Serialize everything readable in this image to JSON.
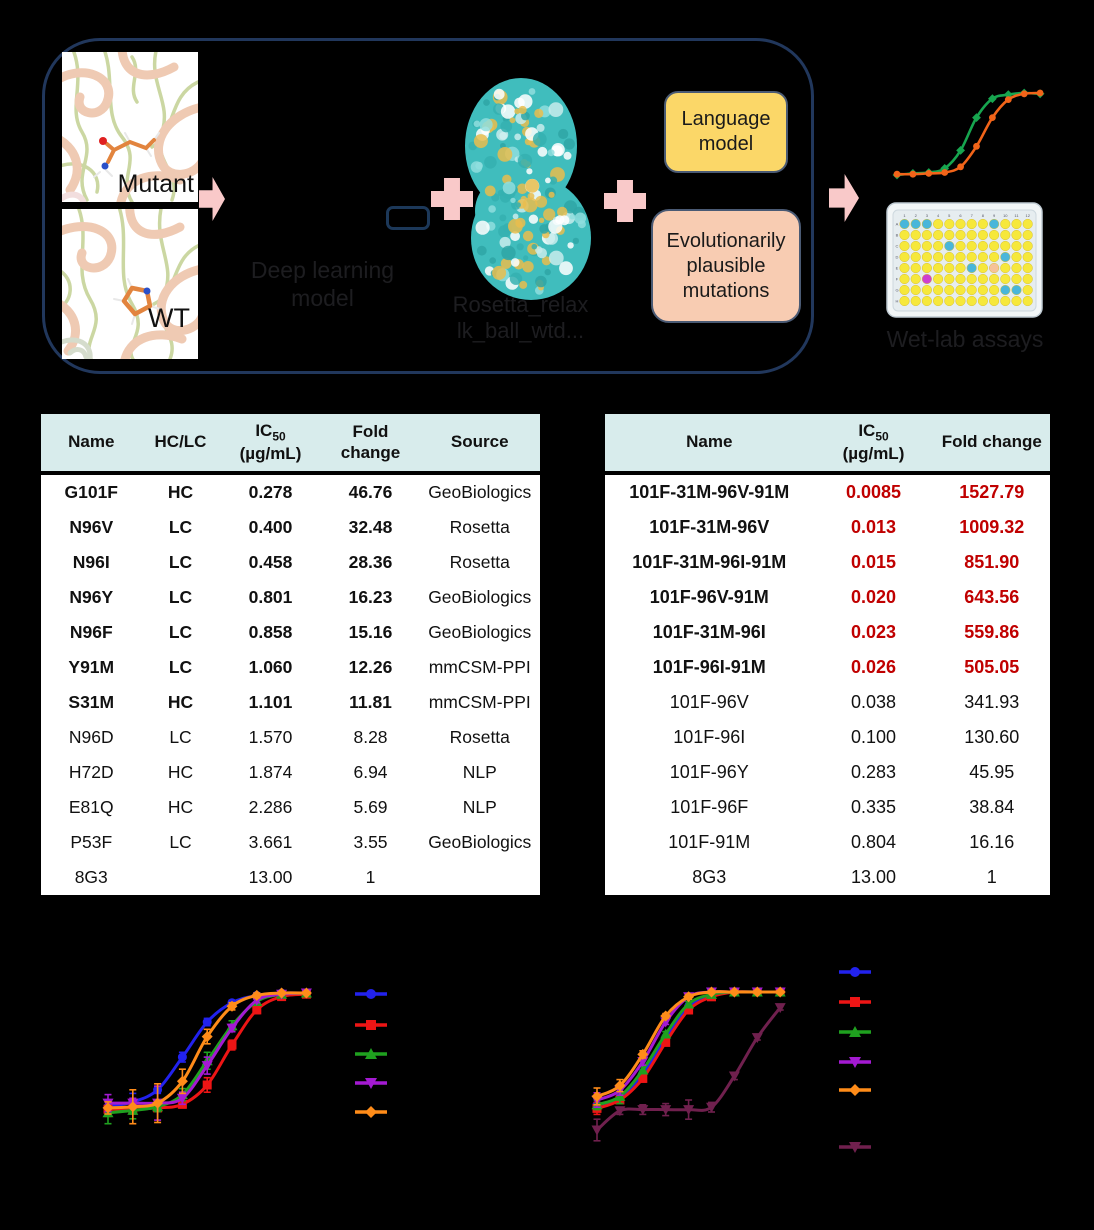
{
  "flow": {
    "mutant_label": "Mutant",
    "wt_label": "WT",
    "deep_learning_label": "Deep learning model",
    "rosetta_line1": "Rosetta_relax",
    "rosetta_line2": "lk_ball_wtd...",
    "language_model_label": "Language model",
    "evo_mutations_label": "Evolutionarily plausible mutations",
    "wetlab_label": "Wet-lab assays",
    "plate": {
      "row_labels": [
        "A",
        "B",
        "C",
        "D",
        "E",
        "F",
        "G",
        "H"
      ],
      "col_labels": [
        "1",
        "2",
        "3",
        "4",
        "5",
        "6",
        "7",
        "8",
        "9",
        "10",
        "11",
        "12"
      ],
      "default_well_color": "#f6e83b",
      "special_wells": {
        "A1": "#49b6da",
        "A2": "#49b6da",
        "A3": "#49b6da",
        "A9": "#49b6da",
        "C5": "#49b6da",
        "D10": "#49b6da",
        "E7": "#49b6da",
        "E9": "#f6c29a",
        "F3": "#cf3fd0",
        "G10": "#49b6da",
        "G11": "#49b6da"
      }
    }
  },
  "tables": {
    "left": {
      "headers": {
        "name": "Name",
        "hclc": "HC/LC",
        "ic50_main": "IC",
        "ic50_sub": "50",
        "ic50_unit": "(µg/mL)",
        "fold": "Fold change",
        "source": "Source"
      },
      "rows": [
        {
          "name": "G101F",
          "hclc": "HC",
          "ic50": "0.278",
          "fold": "46.76",
          "source": "GeoBiologics",
          "bold": true
        },
        {
          "name": "N96V",
          "hclc": "LC",
          "ic50": "0.400",
          "fold": "32.48",
          "source": "Rosetta",
          "bold": true
        },
        {
          "name": "N96I",
          "hclc": "LC",
          "ic50": "0.458",
          "fold": "28.36",
          "source": "Rosetta",
          "bold": true
        },
        {
          "name": "N96Y",
          "hclc": "LC",
          "ic50": "0.801",
          "fold": "16.23",
          "source": "GeoBiologics",
          "bold": true
        },
        {
          "name": "N96F",
          "hclc": "LC",
          "ic50": "0.858",
          "fold": "15.16",
          "source": "GeoBiologics",
          "bold": true
        },
        {
          "name": "Y91M",
          "hclc": "LC",
          "ic50": "1.060",
          "fold": "12.26",
          "source": "mmCSM-PPI",
          "bold": true
        },
        {
          "name": "S31M",
          "hclc": "HC",
          "ic50": "1.101",
          "fold": "11.81",
          "source": "mmCSM-PPI",
          "bold": true
        },
        {
          "name": "N96D",
          "hclc": "LC",
          "ic50": "1.570",
          "fold": "8.28",
          "source": "Rosetta",
          "bold": false
        },
        {
          "name": "H72D",
          "hclc": "HC",
          "ic50": "1.874",
          "fold": "6.94",
          "source": "NLP",
          "bold": false
        },
        {
          "name": "E81Q",
          "hclc": "HC",
          "ic50": "2.286",
          "fold": "5.69",
          "source": "NLP",
          "bold": false
        },
        {
          "name": "P53F",
          "hclc": "LC",
          "ic50": "3.661",
          "fold": "3.55",
          "source": "GeoBiologics",
          "bold": false
        },
        {
          "name": "8G3",
          "hclc": "",
          "ic50": "13.00",
          "fold": "1",
          "source": "",
          "bold": false
        }
      ]
    },
    "right": {
      "headers": {
        "name": "Name",
        "ic50_main": "IC",
        "ic50_sub": "50",
        "ic50_unit": "(µg/mL)",
        "fold": "Fold change"
      },
      "rows": [
        {
          "name": "101F-31M-96V-91M",
          "ic50": "0.0085",
          "fold": "1527.79",
          "highlight": true
        },
        {
          "name": "101F-31M-96V",
          "ic50": "0.013",
          "fold": "1009.32",
          "highlight": true
        },
        {
          "name": "101F-31M-96I-91M",
          "ic50": "0.015",
          "fold": "851.90",
          "highlight": true
        },
        {
          "name": "101F-96V-91M",
          "ic50": "0.020",
          "fold": "643.56",
          "highlight": true
        },
        {
          "name": "101F-31M-96I",
          "ic50": "0.023",
          "fold": "559.86",
          "highlight": true
        },
        {
          "name": "101F-96I-91M",
          "ic50": "0.026",
          "fold": "505.05",
          "highlight": true
        },
        {
          "name": "101F-96V",
          "ic50": "0.038",
          "fold": "341.93",
          "highlight": false
        },
        {
          "name": "101F-96I",
          "ic50": "0.100",
          "fold": "130.60",
          "highlight": false
        },
        {
          "name": "101F-96Y",
          "ic50": "0.283",
          "fold": "45.95",
          "highlight": false
        },
        {
          "name": "101F-96F",
          "ic50": "0.335",
          "fold": "38.84",
          "highlight": false
        },
        {
          "name": "101F-91M",
          "ic50": "0.804",
          "fold": "16.16",
          "highlight": false
        },
        {
          "name": "8G3",
          "ic50": "13.00",
          "fold": "1",
          "highlight": false
        }
      ]
    }
  },
  "colors": {
    "background": "#000000",
    "container_border": "#21375c",
    "accent_pink": "#f9c9c9",
    "language_box_fill": "#fbd768",
    "evo_box_fill": "#f8ccb2",
    "table_header_bg": "#d8ecec",
    "highlight_red": "#c00000"
  },
  "chart_data": [
    {
      "id": "dose-response-left",
      "type": "line",
      "note": "sigmoid binding curves; axis tick labels and legend text are not visible (black on black); y values are estimated percent of max response at 9 log-spaced concentrations",
      "x_index": [
        1,
        2,
        3,
        4,
        5,
        6,
        7,
        8,
        9
      ],
      "axes_visible": false,
      "legend_position": "right",
      "series": [
        {
          "label": "",
          "color": "#2222ee",
          "marker": "circle",
          "values": [
            6,
            10,
            20,
            47,
            76,
            92,
            98,
            100,
            100
          ],
          "errors": [
            5,
            7,
            3,
            4,
            3,
            2,
            2,
            1,
            1
          ]
        },
        {
          "label": "",
          "color": "#ee1515",
          "marker": "square",
          "values": [
            4,
            4,
            5,
            8,
            24,
            57,
            86,
            97,
            99
          ],
          "errors": [
            6,
            4,
            3,
            3,
            6,
            4,
            3,
            2,
            1
          ]
        },
        {
          "label": "",
          "color": "#1fa11f",
          "marker": "triangle-up",
          "values": [
            1,
            3,
            6,
            16,
            44,
            73,
            93,
            99,
            100
          ],
          "errors": [
            9,
            7,
            4,
            5,
            7,
            4,
            2,
            1,
            1
          ]
        },
        {
          "label": "",
          "color": "#a41ad2",
          "marker": "triangle-down",
          "values": [
            9,
            9,
            9,
            13,
            40,
            71,
            94,
            99,
            100
          ],
          "errors": [
            7,
            4,
            14,
            5,
            7,
            3,
            2,
            1,
            1
          ]
        },
        {
          "label": "",
          "color": "#ff8c19",
          "marker": "diamond",
          "values": [
            5,
            6,
            9,
            27,
            64,
            89,
            98,
            100,
            100
          ],
          "errors": [
            5,
            14,
            16,
            10,
            6,
            3,
            2,
            1,
            1
          ]
        }
      ]
    },
    {
      "id": "dose-response-right",
      "type": "line",
      "note": "sigmoid binding curves; last (dark) series is strongly right-shifted control; labels not visible; y values estimated percent of max",
      "x_index": [
        1,
        2,
        3,
        4,
        5,
        6,
        7,
        8,
        9
      ],
      "axes_visible": false,
      "legend_position": "right",
      "series": [
        {
          "label": "",
          "color": "#2222ee",
          "marker": "circle",
          "values": [
            6,
            12,
            32,
            62,
            88,
            97,
            100,
            100,
            100
          ],
          "errors": [
            5,
            5,
            3,
            2,
            2,
            1,
            1,
            1,
            1
          ]
        },
        {
          "label": "",
          "color": "#ee1515",
          "marker": "square",
          "values": [
            3,
            10,
            28,
            58,
            85,
            96,
            100,
            100,
            100
          ],
          "errors": [
            5,
            3,
            3,
            2,
            2,
            1,
            1,
            1,
            1
          ]
        },
        {
          "label": "",
          "color": "#1fa11f",
          "marker": "triangle-up",
          "values": [
            6,
            13,
            35,
            65,
            90,
            98,
            100,
            100,
            100
          ],
          "errors": [
            4,
            6,
            3,
            2,
            2,
            1,
            1,
            1,
            1
          ]
        },
        {
          "label": "",
          "color": "#a41ad2",
          "marker": "triangle-down",
          "values": [
            10,
            18,
            42,
            75,
            96,
            100,
            100,
            100,
            100
          ],
          "errors": [
            6,
            4,
            3,
            2,
            2,
            1,
            1,
            1,
            1
          ]
        },
        {
          "label": "",
          "color": "#ff8c19",
          "marker": "diamond",
          "values": [
            13,
            22,
            48,
            80,
            96,
            100,
            100,
            100,
            100
          ],
          "errors": [
            7,
            5,
            3,
            2,
            2,
            1,
            1,
            1,
            1
          ]
        },
        {
          "label": "",
          "color": "#70204e",
          "marker": "triangle-down",
          "values": [
            -15,
            1,
            2,
            2,
            2,
            4,
            30,
            62,
            87
          ],
          "errors": [
            9,
            3,
            4,
            5,
            8,
            4,
            3,
            2,
            2
          ]
        }
      ]
    },
    {
      "id": "schematic-assay-curves",
      "type": "line",
      "note": "decorative schematic curves in top flow diagram (Wet-lab assays)",
      "x_index": [
        1,
        2,
        3,
        4,
        5,
        6,
        7,
        8,
        9,
        10
      ],
      "axes_visible": false,
      "series": [
        {
          "label": "",
          "color": "#17a54f",
          "marker": "diamond",
          "values": [
            0,
            2,
            3,
            8,
            30,
            70,
            93,
            98,
            100,
            99
          ]
        },
        {
          "label": "",
          "color": "#f26419",
          "marker": "circle",
          "values": [
            1,
            1,
            2,
            3,
            10,
            35,
            70,
            92,
            99,
            100
          ]
        }
      ]
    }
  ]
}
